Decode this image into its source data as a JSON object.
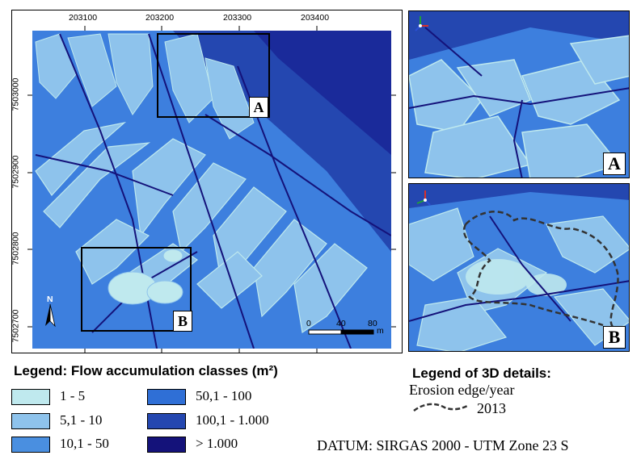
{
  "map": {
    "x_ticks": [
      "203100",
      "203200",
      "203300",
      "203400"
    ],
    "y_ticks": [
      "7503000",
      "7502900",
      "7502800",
      "7502700"
    ],
    "inset_box_a_label": "A",
    "inset_box_b_label": "B",
    "north_label": "N",
    "scale": {
      "labels": [
        "0",
        "40",
        "80"
      ],
      "unit": "m"
    }
  },
  "detail_a": {
    "label": "A"
  },
  "detail_b": {
    "label": "B"
  },
  "legend_flow": {
    "title": "Legend: Flow accumulation classes (m²)",
    "classes": [
      {
        "label": "1 - 5",
        "color": "#bfe9ee"
      },
      {
        "label": "5,1 - 10",
        "color": "#8ec3ec"
      },
      {
        "label": "10,1 - 50",
        "color": "#4a8fe0"
      },
      {
        "label": "50,1 - 100",
        "color": "#2f6fd6"
      },
      {
        "label": "100,1 - 1.000",
        "color": "#2447b0"
      },
      {
        "label": "> 1.000",
        "color": "#14127a"
      }
    ]
  },
  "legend_3d": {
    "title": "Legend of 3D details:",
    "subtitle": "Erosion edge/year",
    "entry_year": "2013"
  },
  "datum": "DATUM: SIRGAS 2000 - UTM Zone 23 S"
}
